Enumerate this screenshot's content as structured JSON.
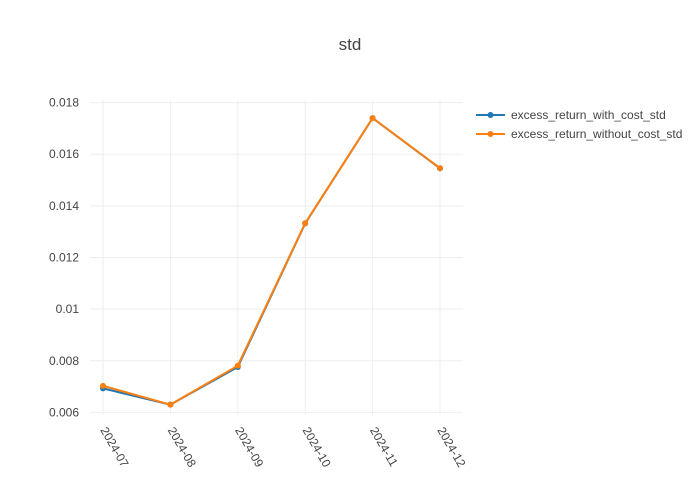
{
  "chart_data": {
    "type": "line",
    "title": "std",
    "xlabel": "",
    "ylabel": "",
    "categories": [
      "2024-07",
      "2024-08",
      "2024-09",
      "2024-10",
      "2024-11",
      "2024-12"
    ],
    "series": [
      {
        "name": "excess_return_with_cost_std",
        "color": "#1f77b4",
        "values": [
          0.00693,
          0.0063,
          0.00776,
          0.01332,
          0.0174,
          0.01545
        ]
      },
      {
        "name": "excess_return_without_cost_std",
        "color": "#ff7f0e",
        "values": [
          0.00703,
          0.0063,
          0.00781,
          0.01333,
          0.0174,
          0.01546
        ]
      }
    ],
    "y_ticks": [
      "0.006",
      "0.008",
      "0.01",
      "0.012",
      "0.014",
      "0.016",
      "0.018"
    ],
    "ylim": [
      0.0059,
      0.0181
    ],
    "grid": true,
    "legend_position": "top-right"
  }
}
